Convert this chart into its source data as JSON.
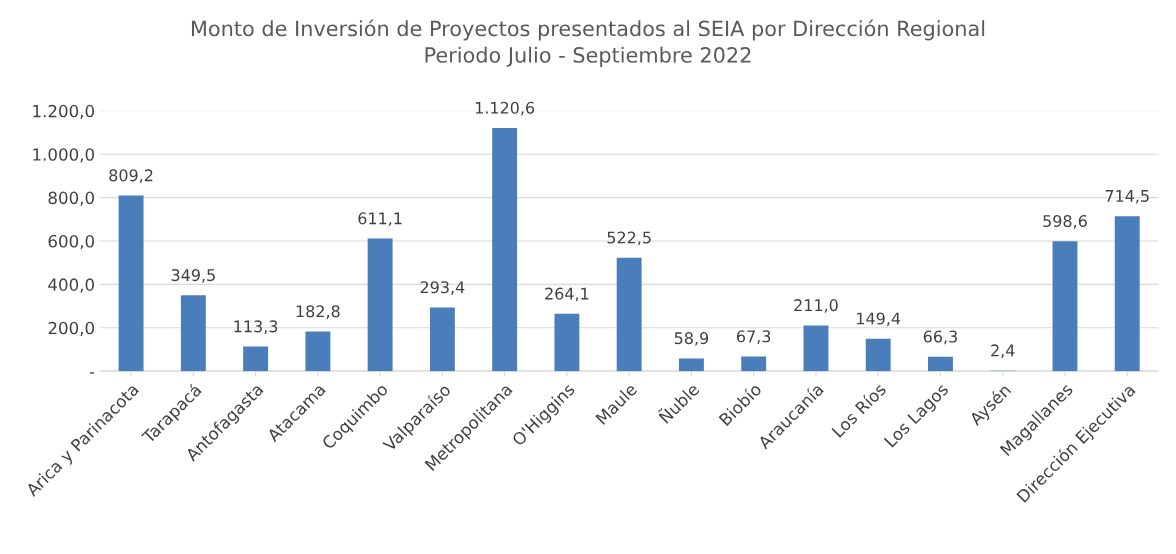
{
  "chart_data": {
    "type": "bar",
    "title": "Monto de Inversión de Proyectos presentados al SEIA por Dirección Regional\nPeriodo Julio - Septiembre 2022",
    "categories": [
      "Arica y Parinacota",
      "Tarapacá",
      "Antofagasta",
      "Atacama",
      "Coquimbo",
      "Valparaíso",
      "Metropolitana",
      "O'Higgins",
      "Maule",
      "Ñuble",
      "Biobío",
      "Araucanía",
      "Los Ríos",
      "Los Lagos",
      "Aysén",
      "Magallanes",
      "Dirección Ejecutiva"
    ],
    "values": [
      809.2,
      349.5,
      113.3,
      182.8,
      611.1,
      293.4,
      1120.6,
      264.1,
      522.5,
      58.9,
      67.3,
      211.0,
      149.4,
      66.3,
      2.4,
      598.6,
      714.5
    ],
    "value_labels": [
      "809,2",
      "349,5",
      "113,3",
      "182,8",
      "611,1",
      "293,4",
      "1.120,6",
      "264,1",
      "522,5",
      "58,9",
      "67,3",
      "211,0",
      "149,4",
      "66,3",
      "2,4",
      "598,6",
      "714,5"
    ],
    "color": "#4a7ebb",
    "ylim": [
      0,
      1200
    ],
    "yticks": [
      {
        "value": 0,
        "label": "-"
      },
      {
        "value": 200,
        "label": "200,0"
      },
      {
        "value": 400,
        "label": "400,0"
      },
      {
        "value": 600,
        "label": "600,0"
      },
      {
        "value": 800,
        "label": "800,0"
      },
      {
        "value": 1000,
        "label": "1.000,0"
      },
      {
        "value": 1200,
        "label": "1.200,0"
      }
    ],
    "grid": "y",
    "legend": false
  }
}
